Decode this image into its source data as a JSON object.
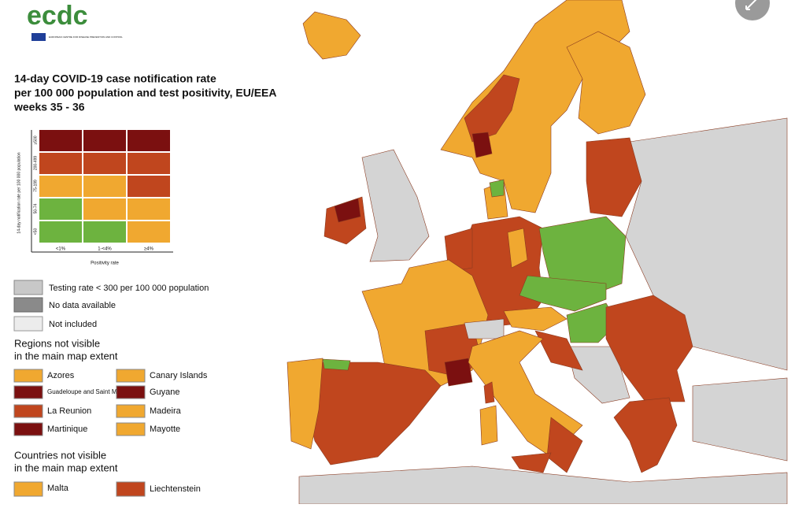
{
  "logo": {
    "name": "ecdc",
    "subtitle": "EUROPEAN CENTRE FOR DISEASE PREVENTION AND CONTROL"
  },
  "title": [
    "14-day COVID-19 case notification rate",
    "per 100 000 population and test positivity, EU/EEA",
    "weeks 35 - 36"
  ],
  "matrix": {
    "y_label": "14-day notification rate per 100 000 population",
    "rows": [
      "≥500",
      "200-499",
      "75-199",
      "50-74",
      "<50"
    ],
    "columns": [
      "<1%",
      "1-<4%",
      "≥4%"
    ],
    "x_label": "Positivity rate"
  },
  "legend": [
    "Testing rate < 300 per 100 000 population",
    "No data available",
    "Not included"
  ],
  "regions": {
    "heading": [
      "Regions not visible",
      "in the main map extent"
    ],
    "items": [
      "Azores",
      "Canary Islands",
      "Guadeloupe and Saint Martin",
      "Guyane",
      "La Reunion",
      "Madeira",
      "Martinique",
      "Mayotte"
    ]
  },
  "countries": {
    "heading": [
      "Countries not visible",
      "in the main map extent"
    ],
    "items": [
      "Malta",
      "Liechtenstein"
    ]
  }
}
